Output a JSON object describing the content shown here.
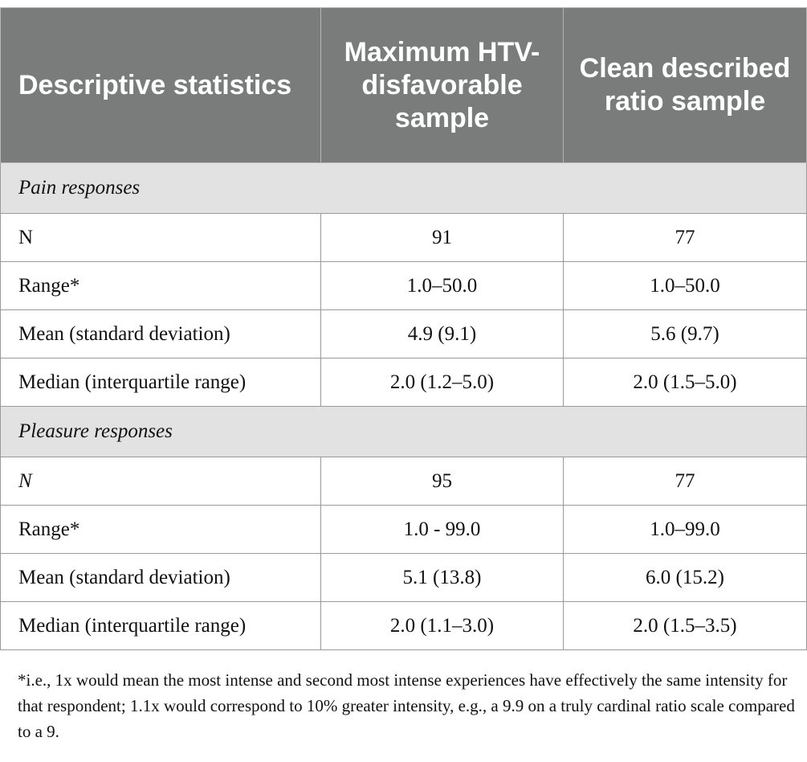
{
  "headers": {
    "col1": "Descriptive statistics",
    "col2": "Maximum HTV-disfavorable sample",
    "col3": "Clean described ratio sample"
  },
  "sections": {
    "pain": {
      "title": "Pain responses",
      "rows": [
        {
          "label": "N",
          "v1": "91",
          "v2": "77"
        },
        {
          "label": "Range*",
          "v1": "1.0–50.0",
          "v2": "1.0–50.0"
        },
        {
          "label": "Mean (standard deviation)",
          "v1": "4.9 (9.1)",
          "v2": "5.6 (9.7)"
        },
        {
          "label": "Median (interquartile range)",
          "v1": "2.0 (1.2–5.0)",
          "v2": "2.0 (1.5–5.0)"
        }
      ]
    },
    "pleasure": {
      "title": "Pleasure responses",
      "rows": [
        {
          "label": "N",
          "v1": "95",
          "v2": "77"
        },
        {
          "label": "Range*",
          "v1": "1.0 - 99.0",
          "v2": "1.0–99.0"
        },
        {
          "label": "Mean (standard deviation)",
          "v1": "5.1 (13.8)",
          "v2": "6.0 (15.2)"
        },
        {
          "label": "Median (interquartile range)",
          "v1": "2.0 (1.1–3.0)",
          "v2": "2.0 (1.5–3.5)"
        }
      ]
    }
  },
  "footnote": "*i.e., 1x would mean the most intense and second most intense experiences have effectively the same intensity for that respondent; 1.1x would correspond to 10% greater intensity, e.g., a 9.9 on a truly cardinal ratio scale compared to a 9."
}
